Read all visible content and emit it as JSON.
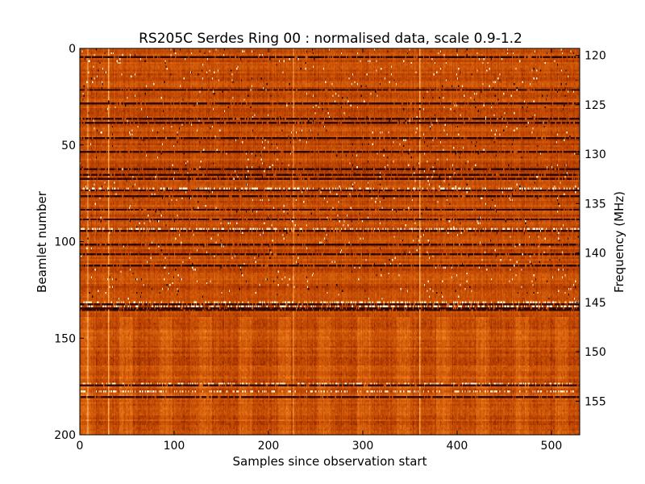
{
  "chart_data": {
    "type": "heatmap",
    "title": "RS205C Serdes Ring 00 : normalised data, scale 0.9-1.2",
    "xlabel": "Samples since observation start",
    "ylabel": "Beamlet number",
    "ylabel_right": "Frequency (MHz)",
    "xlim": [
      0,
      530
    ],
    "ylim": [
      200,
      0
    ],
    "y2lim": [
      119.3,
      158.4
    ],
    "x_ticks": [
      0,
      100,
      200,
      300,
      400,
      500
    ],
    "y_ticks": [
      0,
      50,
      100,
      150,
      200
    ],
    "y2_ticks": [
      120,
      125,
      130,
      135,
      140,
      145,
      150,
      155
    ],
    "color_scale": [
      0.9,
      1.2
    ],
    "colormap_colors": [
      "#000000",
      "#6a1000",
      "#b84000",
      "#e06a10",
      "#ff9a35",
      "#ffd080",
      "#ffffff"
    ],
    "grid": false,
    "features": {
      "dark_rows": [
        4,
        21,
        28,
        36,
        38,
        46,
        53,
        62,
        65,
        67,
        73,
        76,
        83,
        88,
        94,
        101,
        106,
        112,
        132,
        134,
        135,
        174,
        180
      ],
      "bright_rows": [
        72,
        93,
        131,
        133,
        173,
        177
      ],
      "bright_columns": [
        8,
        30,
        226,
        360
      ]
    }
  }
}
